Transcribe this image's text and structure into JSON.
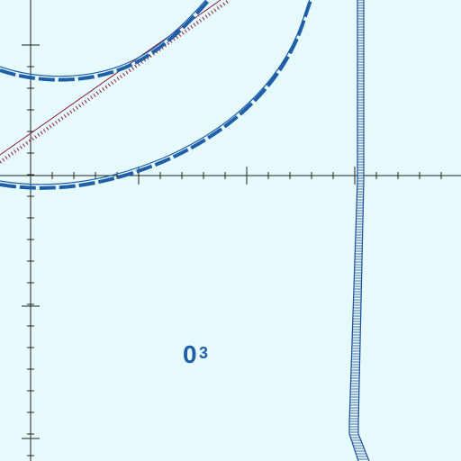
{
  "map": {
    "background_color": "#e6f9fb",
    "grid_color": "#222222",
    "contour_color": "#1f5fa8",
    "cable_line_color": "#8b1d3f",
    "channel_color": "#1f4f9a"
  },
  "sounding": {
    "depth": "0",
    "fraction": "3"
  },
  "features": [
    "depth-contour-outer",
    "depth-contour-inner",
    "cable-line",
    "channel-edge",
    "graticule"
  ]
}
